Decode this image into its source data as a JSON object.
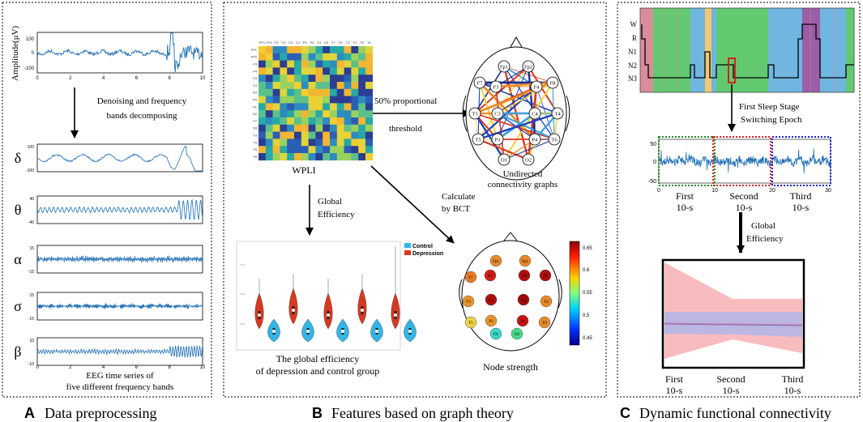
{
  "panels": {
    "a": {
      "letter": "A",
      "caption": "Data preprocessing",
      "amplitude_label": "Amplitude(μV)",
      "top_yticks": [
        "100",
        "0",
        "-100"
      ],
      "xticks": [
        "0",
        "2",
        "4",
        "6",
        "8",
        "10"
      ],
      "step_label_1": "Denoising and frequency",
      "step_label_2": "bands decomposing",
      "bands": [
        {
          "symbol": "δ",
          "ytop": "100",
          "ybot": "-100"
        },
        {
          "symbol": "θ",
          "ytop": "40",
          "ybot": "-40"
        },
        {
          "symbol": "α",
          "ytop": "15",
          "ybot": "-15"
        },
        {
          "symbol": "σ",
          "ytop": "15",
          "ybot": "-15"
        },
        {
          "symbol": "β",
          "ytop": "10",
          "ybot": "-10"
        }
      ],
      "bottom_label_1": "EEG time series of",
      "bottom_label_2": "five different frequency bands"
    },
    "b": {
      "letter": "B",
      "caption": "Features based on graph theory",
      "channels": [
        "FP1",
        "FP2",
        "F3",
        "F4",
        "C3",
        "C4",
        "P3",
        "P4",
        "O1",
        "O2",
        "F7",
        "F8",
        "T3",
        "T4",
        "T5",
        "T6"
      ],
      "matrix_label": "WPLI",
      "arrow1_label": "50% proportional",
      "arrow1_label2": "threshold",
      "graph_label_1": "Undirected",
      "graph_label_2": "connectivity graphs",
      "ge_label_1": "Global",
      "ge_label_2": "Efficiency",
      "bct_label_1": "Calculate",
      "bct_label_2": "by BCT",
      "violin_caption_1": "The global efficiency",
      "violin_caption_2": "of depression and control group",
      "legend": [
        {
          "name": "Control",
          "color": "#33b5e5"
        },
        {
          "name": "Depression",
          "color": "#d9381e"
        }
      ],
      "node_strength_label": "Node strength",
      "colorbar_ticks": [
        "0.65",
        "0.6",
        "0.55",
        "0.5",
        "0.45"
      ],
      "graph_nodes": [
        "Fp1",
        "Fp2",
        "F7",
        "F3",
        "F4",
        "F8",
        "T3",
        "C3",
        "C4",
        "T4",
        "T5",
        "P3",
        "P4",
        "T6",
        "O1",
        "O2"
      ],
      "strength_nodes": [
        "Fp1",
        "Fp2",
        "F7",
        "F3",
        "F4",
        "F8",
        "T3",
        "C3",
        "C4",
        "T4",
        "T5",
        "P3",
        "P4",
        "T6",
        "O1",
        "O2"
      ]
    },
    "c": {
      "letter": "C",
      "caption": "Dynamic functional connectivity",
      "stages": [
        "W",
        "R",
        "N1",
        "N2",
        "N3"
      ],
      "step_label_1": "First Sleep Stage",
      "step_label_2": "Switching Epoch",
      "yticks": [
        "50",
        "0",
        "-50"
      ],
      "xticks": [
        "0",
        "10",
        "20",
        "30"
      ],
      "window_labels": [
        {
          "line1": "First",
          "line2": "10-s"
        },
        {
          "line1": "Second",
          "line2": "10-s"
        },
        {
          "line1": "Third",
          "line2": "10-s"
        }
      ],
      "ge_label_1": "Global",
      "ge_label_2": "Efficiency",
      "bottom_labels": [
        {
          "line1": "First",
          "line2": "10-s"
        },
        {
          "line1": "Second",
          "line2": "10-s"
        },
        {
          "line1": "Third",
          "line2": "10-s"
        }
      ]
    }
  },
  "colors": {
    "signal": "#1f6fb5",
    "wake": "#d98c9a",
    "rem": "#9b5ea8",
    "n1": "#f6c86b",
    "n2": "#6fb6e0",
    "n3": "#63c971"
  }
}
